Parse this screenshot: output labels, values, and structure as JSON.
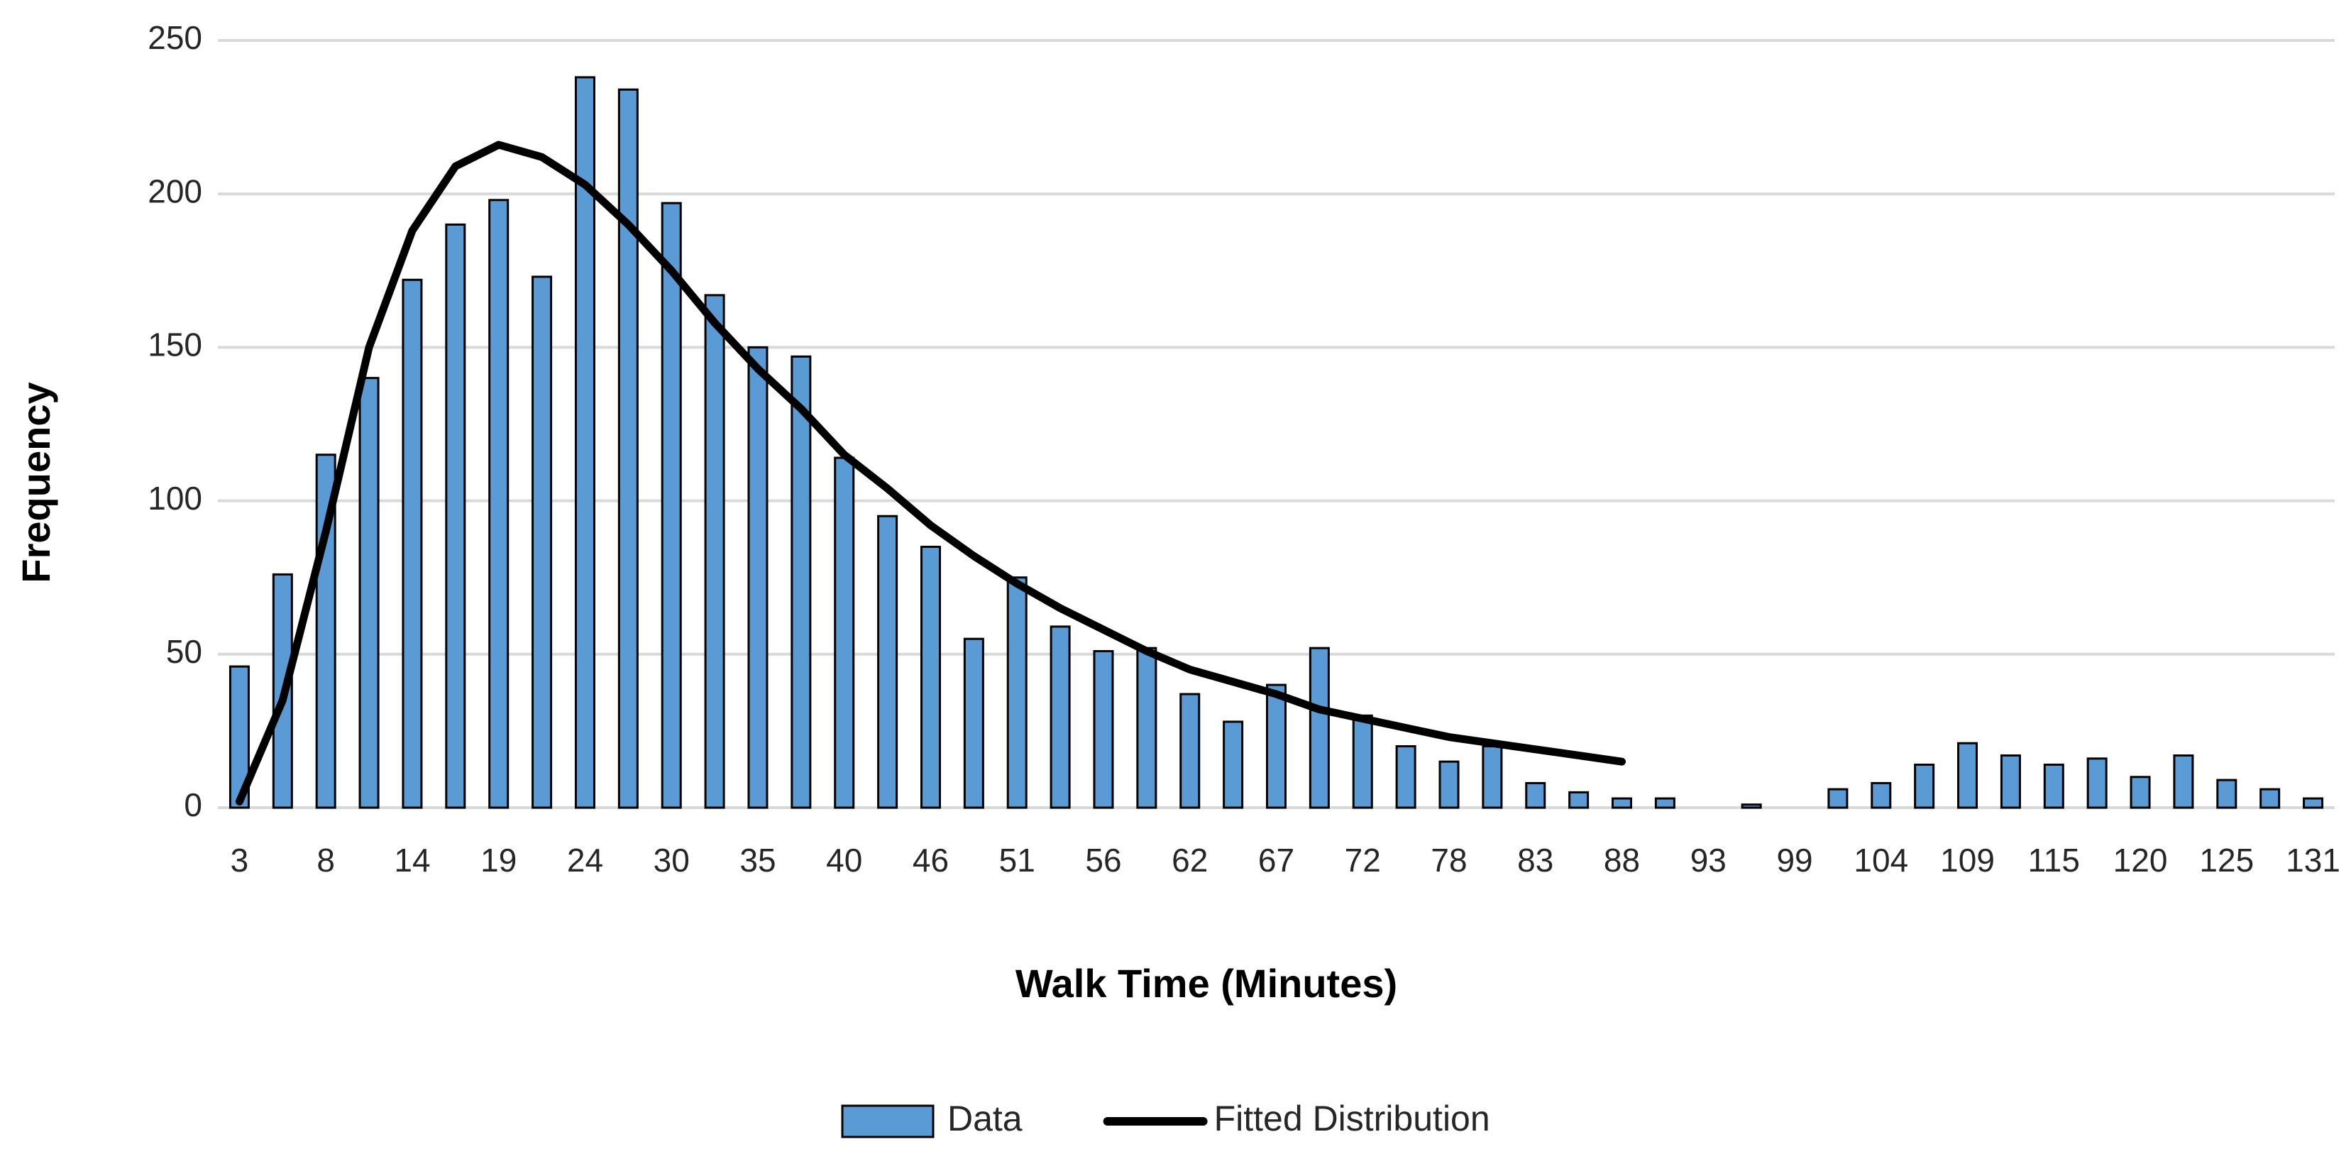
{
  "chart_data": {
    "type": "bar",
    "x_label": "Walk Time (Minutes)",
    "y_label": "Frequency",
    "categories": [
      "3",
      null,
      "8",
      null,
      "14",
      null,
      "19",
      null,
      "24",
      null,
      "30",
      null,
      "35",
      null,
      "40",
      null,
      "46",
      null,
      "51",
      null,
      "56",
      null,
      "62",
      null,
      "67",
      null,
      "72",
      null,
      "78",
      null,
      "83",
      null,
      "88",
      null,
      "93",
      null,
      "99",
      null,
      "104",
      null,
      "109",
      null,
      "115",
      null,
      "120",
      null,
      "125",
      null,
      "131"
    ],
    "series": [
      {
        "name": "Data",
        "type": "bar",
        "color": "#5b9bd5",
        "values": [
          46,
          76,
          115,
          140,
          172,
          190,
          198,
          173,
          238,
          234,
          197,
          167,
          150,
          147,
          114,
          95,
          85,
          55,
          75,
          59,
          51,
          52,
          37,
          28,
          40,
          52,
          30,
          20,
          15,
          20,
          8,
          5,
          3,
          3,
          0,
          1,
          0,
          6,
          8,
          14,
          21,
          17,
          14,
          16,
          10,
          17,
          9,
          6,
          3
        ]
      },
      {
        "name": "Fitted Distribution",
        "type": "line",
        "color": "#000000",
        "values": [
          2,
          35,
          90,
          150,
          188,
          209,
          216,
          212,
          203,
          190,
          175,
          158,
          143,
          130,
          115,
          104,
          92,
          82,
          73,
          65,
          58,
          51,
          45,
          41,
          37,
          32,
          29,
          26,
          23,
          21,
          19,
          17,
          15,
          null,
          null,
          null,
          null,
          null,
          null,
          null,
          null,
          null,
          null,
          null,
          null,
          null,
          null,
          null,
          null
        ]
      }
    ],
    "ylim": [
      0,
      250
    ],
    "yticks": [
      0,
      50,
      100,
      150,
      200,
      250
    ],
    "grid": true
  }
}
